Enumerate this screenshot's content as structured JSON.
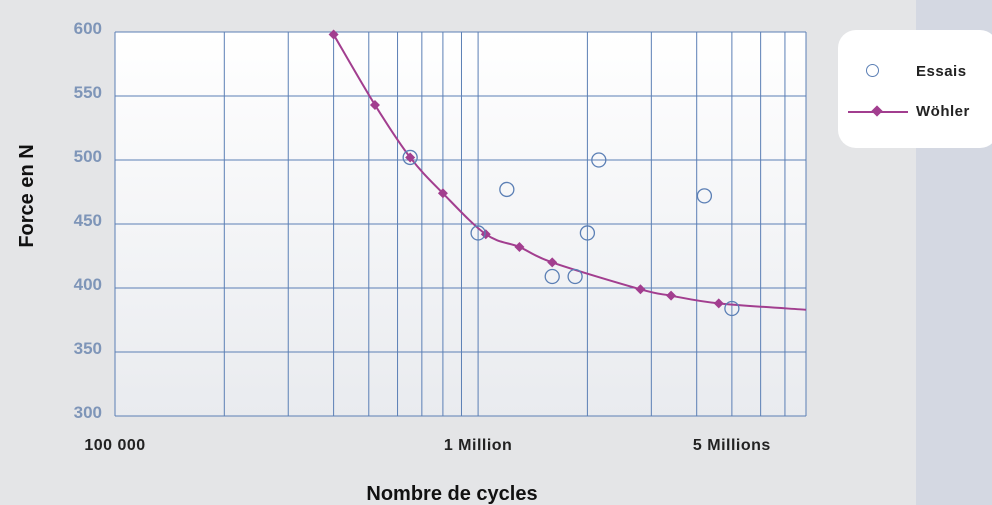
{
  "chart_data": {
    "type": "scatter",
    "xlabel": "Nombre de cycles",
    "ylabel": "Force en N",
    "x_scale": "log",
    "xlim": [
      100000,
      8000000
    ],
    "ylim": [
      300,
      600
    ],
    "y_ticks": [
      300,
      350,
      400,
      450,
      500,
      550,
      600
    ],
    "x_tick_labels": [
      {
        "value": 100000,
        "label": "100 000"
      },
      {
        "value": 1000000,
        "label": "1 Million"
      },
      {
        "value": 5000000,
        "label": "5 Millions"
      }
    ],
    "grid": true,
    "legend_position": "top-right",
    "series": [
      {
        "name": "Essais",
        "kind": "scatter",
        "color": "#5b7fb5",
        "points": [
          {
            "x": 650000,
            "y": 502
          },
          {
            "x": 1000000,
            "y": 443
          },
          {
            "x": 1200000,
            "y": 477
          },
          {
            "x": 1600000,
            "y": 409
          },
          {
            "x": 1850000,
            "y": 409
          },
          {
            "x": 2000000,
            "y": 443
          },
          {
            "x": 2150000,
            "y": 500
          },
          {
            "x": 4200000,
            "y": 472
          },
          {
            "x": 5000000,
            "y": 384
          }
        ]
      },
      {
        "name": "Wöhler",
        "kind": "line",
        "color": "#a23e8f",
        "points": [
          {
            "x": 400000,
            "y": 598
          },
          {
            "x": 520000,
            "y": 543
          },
          {
            "x": 650000,
            "y": 502
          },
          {
            "x": 800000,
            "y": 474
          },
          {
            "x": 1050000,
            "y": 442
          },
          {
            "x": 1300000,
            "y": 432
          },
          {
            "x": 1600000,
            "y": 420
          },
          {
            "x": 2800000,
            "y": 399
          },
          {
            "x": 3400000,
            "y": 394
          },
          {
            "x": 4600000,
            "y": 388
          },
          {
            "x": 8000000,
            "y": 383
          }
        ]
      }
    ]
  },
  "legend": {
    "essais_label": "Essais",
    "wohler_label": "Wöhler"
  },
  "colors": {
    "grid": "#5b7fb5",
    "tick_text": "#7e95b8",
    "axis_text": "#111111",
    "scatter": "#5b7fb5",
    "curve": "#a23e8f"
  }
}
